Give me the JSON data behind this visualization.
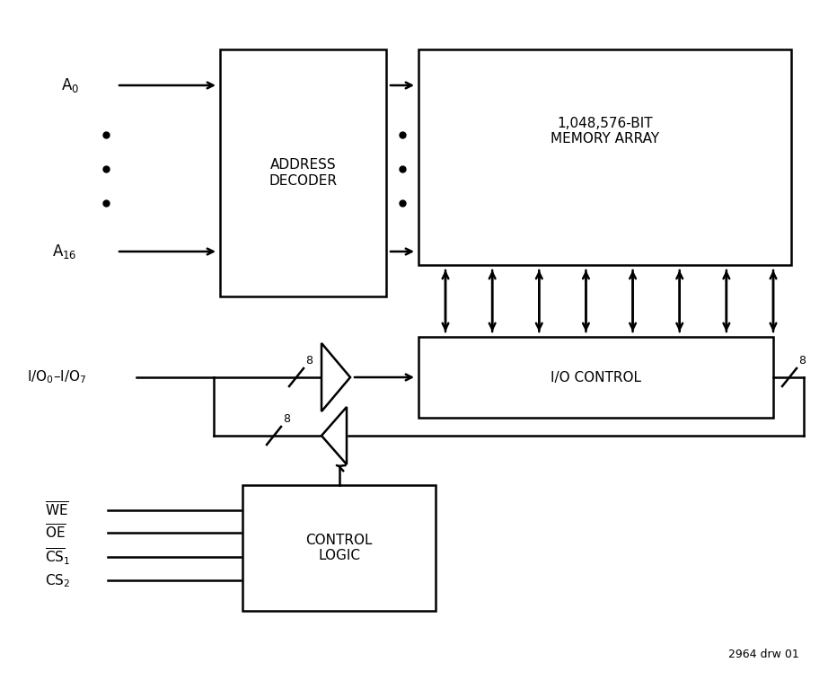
{
  "bg_color": "#ffffff",
  "fig_width": 9.32,
  "fig_height": 7.67,
  "dpi": 100,
  "addr_decoder_label": "ADDRESS\nDECODER",
  "memory_array_label": "1,048,576-BIT\nMEMORY ARRAY",
  "io_control_label": "I/O CONTROL",
  "control_logic_label": "CONTROL\nLOGIC",
  "watermark": "2964 drw 01"
}
